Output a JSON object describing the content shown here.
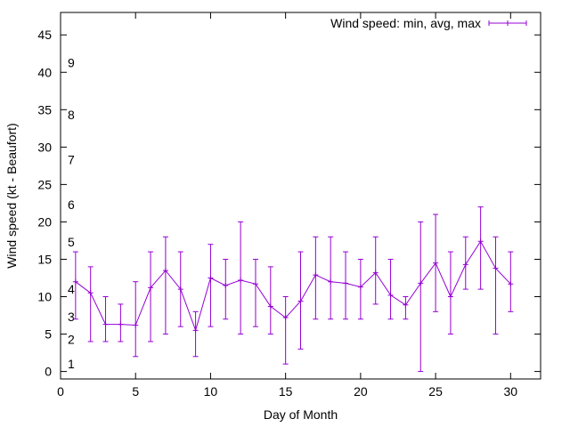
{
  "chart_data": {
    "type": "line",
    "title": "",
    "xlabel": "Day of Month",
    "ylabel": "Wind speed (kt - Beaufort)",
    "xlim": [
      0,
      32
    ],
    "ylim": [
      -1,
      48
    ],
    "x_ticks": [
      0,
      5,
      10,
      15,
      20,
      25,
      30
    ],
    "y_ticks": [
      0,
      5,
      10,
      15,
      20,
      25,
      30,
      35,
      40,
      45
    ],
    "grid": false,
    "legend_position": "top-right",
    "beaufort_labels": [
      {
        "label": "1",
        "y": 1
      },
      {
        "label": "2",
        "y": 4.3
      },
      {
        "label": "3",
        "y": 7.3
      },
      {
        "label": "4",
        "y": 11
      },
      {
        "label": "5",
        "y": 17.3
      },
      {
        "label": "6",
        "y": 22.3
      },
      {
        "label": "7",
        "y": 28.3
      },
      {
        "label": "8",
        "y": 34.3
      },
      {
        "label": "9",
        "y": 41.3
      }
    ],
    "series": [
      {
        "name": "Wind speed: min, avg, max",
        "color": "#9400d3",
        "x": [
          1,
          2,
          3,
          4,
          5,
          6,
          7,
          8,
          9,
          10,
          11,
          12,
          13,
          14,
          15,
          16,
          17,
          18,
          19,
          20,
          21,
          22,
          23,
          24,
          25,
          26,
          27,
          28,
          29,
          30
        ],
        "avg": [
          12,
          10.5,
          6.3,
          6.3,
          6.2,
          11.2,
          13.5,
          11,
          5.5,
          12.5,
          11.5,
          12.2,
          11.7,
          8.7,
          7.2,
          9.4,
          12.9,
          12,
          11.8,
          11.3,
          13.2,
          10.2,
          8.9,
          11.8,
          14.5,
          10,
          14.3,
          17.4,
          13.8,
          11.7
        ],
        "min": [
          7,
          4,
          4,
          4,
          2,
          4,
          5,
          6,
          2,
          6,
          7,
          5,
          6,
          5,
          1,
          3,
          7,
          7,
          7,
          7,
          9,
          7,
          7,
          0,
          8,
          5,
          11,
          11,
          5,
          8
        ],
        "max": [
          16,
          14,
          10,
          9,
          12,
          16,
          18,
          16,
          8,
          17,
          15,
          20,
          15,
          14,
          10,
          16,
          18,
          18,
          16,
          15,
          18,
          15,
          10,
          20,
          21,
          16,
          18,
          22,
          18,
          16
        ]
      }
    ]
  }
}
